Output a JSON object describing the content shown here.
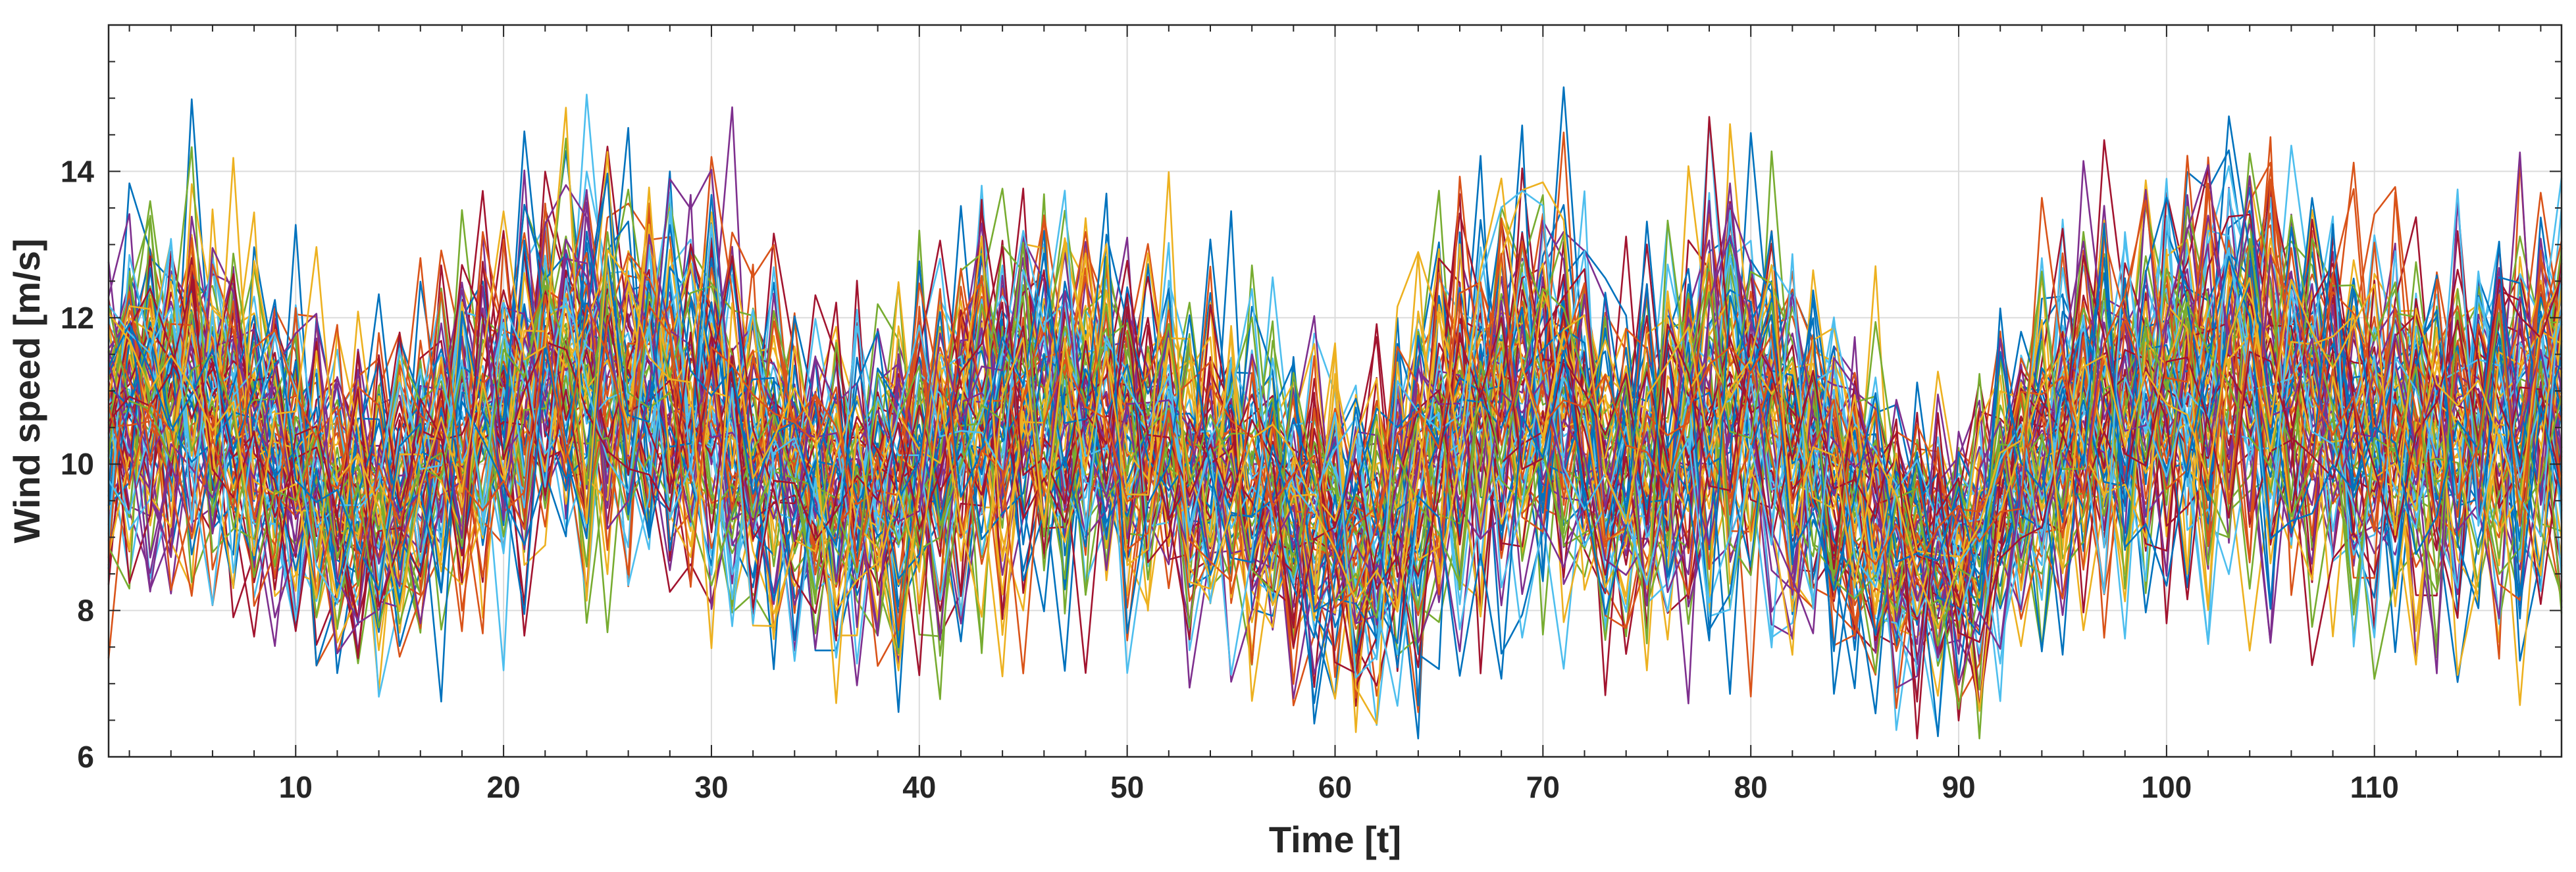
{
  "chart_data": {
    "type": "line",
    "xlabel": "Time [t]",
    "ylabel": "Wind speed [m/s]",
    "xlim": [
      1,
      119
    ],
    "ylim": [
      6,
      16
    ],
    "xticks": [
      10,
      20,
      30,
      40,
      50,
      60,
      70,
      80,
      90,
      100,
      110
    ],
    "yticks": [
      6,
      8,
      10,
      12,
      14
    ],
    "grid": true,
    "legend": "none",
    "series_count": 80,
    "time_steps": 119,
    "colors": [
      "#0072BD",
      "#D95319",
      "#EDB120",
      "#7E2F8E",
      "#77AC30",
      "#4DBEEE",
      "#A2142F"
    ],
    "mean_profile": [
      {
        "t": 1,
        "mean": 10.8,
        "spread": 1.9
      },
      {
        "t": 5,
        "mean": 11.2,
        "spread": 2.2
      },
      {
        "t": 10,
        "mean": 10.0,
        "spread": 2.0
      },
      {
        "t": 14,
        "mean": 9.3,
        "spread": 1.9
      },
      {
        "t": 18,
        "mean": 10.4,
        "spread": 2.0
      },
      {
        "t": 23,
        "mean": 11.4,
        "spread": 2.3
      },
      {
        "t": 29,
        "mean": 11.0,
        "spread": 2.2
      },
      {
        "t": 34,
        "mean": 9.9,
        "spread": 1.8
      },
      {
        "t": 38,
        "mean": 9.6,
        "spread": 1.9
      },
      {
        "t": 43,
        "mean": 10.8,
        "spread": 2.3
      },
      {
        "t": 47,
        "mean": 10.9,
        "spread": 2.3
      },
      {
        "t": 52,
        "mean": 10.2,
        "spread": 2.0
      },
      {
        "t": 57,
        "mean": 9.5,
        "spread": 1.9
      },
      {
        "t": 62,
        "mean": 9.0,
        "spread": 1.9
      },
      {
        "t": 66,
        "mean": 10.8,
        "spread": 2.5
      },
      {
        "t": 70,
        "mean": 11.2,
        "spread": 2.3
      },
      {
        "t": 74,
        "mean": 9.8,
        "spread": 2.0
      },
      {
        "t": 79,
        "mean": 11.2,
        "spread": 2.6
      },
      {
        "t": 83,
        "mean": 10.1,
        "spread": 2.1
      },
      {
        "t": 87,
        "mean": 9.0,
        "spread": 1.8
      },
      {
        "t": 90,
        "mean": 8.7,
        "spread": 1.7
      },
      {
        "t": 94,
        "mean": 10.2,
        "spread": 2.0
      },
      {
        "t": 99,
        "mean": 11.0,
        "spread": 2.3
      },
      {
        "t": 104,
        "mean": 11.5,
        "spread": 2.5
      },
      {
        "t": 108,
        "mean": 10.8,
        "spread": 2.2
      },
      {
        "t": 113,
        "mean": 10.3,
        "spread": 2.1
      },
      {
        "t": 119,
        "mean": 11.0,
        "spread": 2.3
      }
    ]
  }
}
